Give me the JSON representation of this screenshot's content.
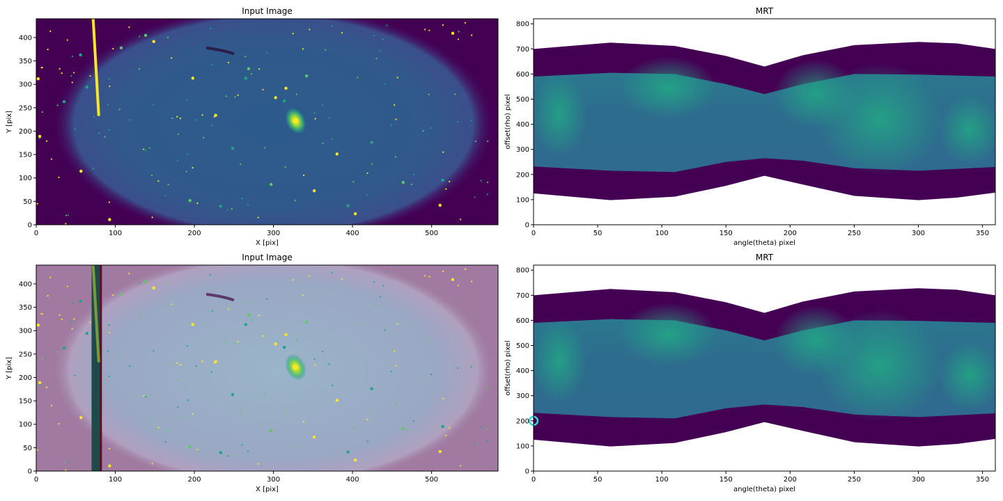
{
  "chart_data": [
    {
      "type": "image",
      "panel": "top-left",
      "title": "Input Image",
      "xlabel": "X [pix]",
      "ylabel": "Y [pix]",
      "xlim": [
        0,
        584
      ],
      "ylim": [
        0,
        440
      ],
      "xticks": [
        0,
        100,
        200,
        300,
        400,
        500
      ],
      "yticks": [
        0,
        50,
        100,
        150,
        200,
        250,
        300,
        350,
        400
      ],
      "colormap": "viridis",
      "streak": {
        "x": [
          70,
          79
        ],
        "y": [
          235,
          440
        ]
      },
      "galaxy": {
        "x": 328,
        "y": 222
      },
      "overlay": null
    },
    {
      "type": "image",
      "panel": "top-right",
      "title": "MRT",
      "xlabel": "angle(theta) pixel",
      "ylabel": "offset(rho) pixel",
      "xlim": [
        0,
        360
      ],
      "ylim": [
        0,
        820
      ],
      "xticks": [
        0,
        50,
        100,
        150,
        200,
        250,
        300,
        350
      ],
      "yticks": [
        0,
        100,
        200,
        300,
        400,
        500,
        600,
        700,
        800
      ],
      "colormap": "viridis",
      "marker": null
    },
    {
      "type": "image",
      "panel": "bottom-left",
      "title": "Input Image",
      "xlabel": "X [pix]",
      "ylabel": "Y [pix]",
      "xlim": [
        0,
        584
      ],
      "ylim": [
        0,
        440
      ],
      "xticks": [
        0,
        100,
        200,
        300,
        400,
        500
      ],
      "yticks": [
        0,
        50,
        100,
        150,
        200,
        250,
        300,
        350,
        400
      ],
      "colormap": "viridis",
      "streak": {
        "x": [
          70,
          79
        ],
        "y": [
          235,
          440
        ]
      },
      "galaxy": {
        "x": 328,
        "y": 222
      },
      "overlay": {
        "band_x": [
          70,
          83
        ],
        "color": "#c8a0c8"
      }
    },
    {
      "type": "image",
      "panel": "bottom-right",
      "title": "MRT",
      "xlabel": "angle(theta) pixel",
      "ylabel": "offset(rho) pixel",
      "xlim": [
        0,
        360
      ],
      "ylim": [
        0,
        820
      ],
      "xticks": [
        0,
        50,
        100,
        150,
        200,
        250,
        300,
        350
      ],
      "yticks": [
        0,
        100,
        200,
        300,
        400,
        500,
        600,
        700,
        800
      ],
      "colormap": "viridis",
      "marker": {
        "x": 0,
        "y": 200,
        "color": "#3fd2d2"
      }
    }
  ],
  "colors": {
    "background": "#440154",
    "mid": "#31688e",
    "teal": "#21918c",
    "bright": "#fde725",
    "overlay_pink": "#c8a0c8"
  }
}
